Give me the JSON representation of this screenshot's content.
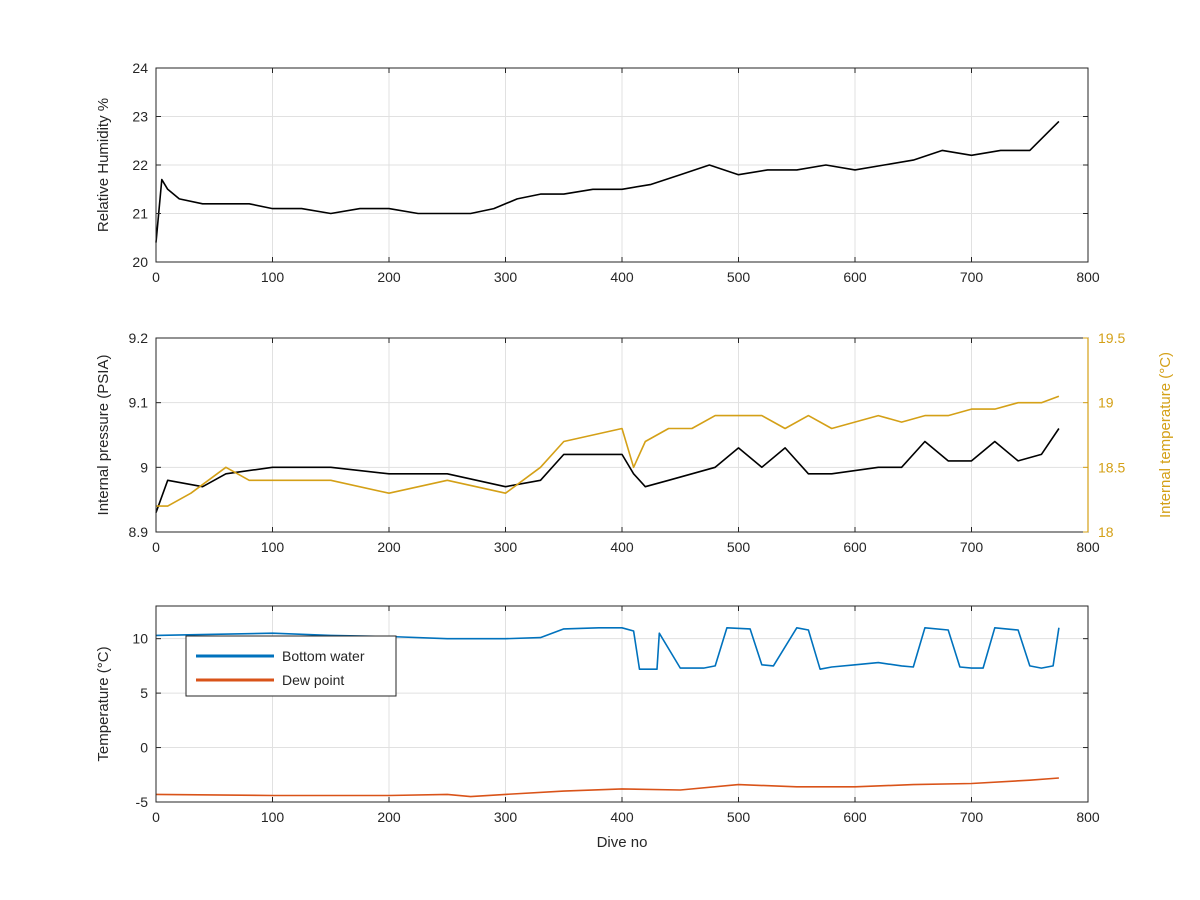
{
  "colors": {
    "humidity": "#000000",
    "pressure": "#000000",
    "internal_temp": "#D4A017",
    "bottom_water": "#0072BD",
    "dew_point": "#D95319",
    "grid": "#e1e1e1",
    "axis": "#262626"
  },
  "chart_data": [
    {
      "type": "line",
      "ylabel": "Relative Humidity %",
      "xlabel": "",
      "xlim": [
        0,
        800
      ],
      "ylim": [
        20,
        24
      ],
      "xticks": [
        "0",
        "100",
        "200",
        "300",
        "400",
        "500",
        "600",
        "700",
        "800"
      ],
      "yticks": [
        "20",
        "21",
        "22",
        "23",
        "24"
      ],
      "grid": true,
      "series": [
        {
          "color_key": "humidity",
          "x": [
            0,
            5,
            10,
            20,
            40,
            60,
            80,
            100,
            125,
            150,
            175,
            200,
            225,
            250,
            270,
            290,
            310,
            330,
            350,
            375,
            400,
            425,
            450,
            475,
            500,
            525,
            550,
            575,
            600,
            625,
            650,
            675,
            700,
            725,
            750,
            775
          ],
          "y": [
            20.4,
            21.7,
            21.5,
            21.3,
            21.2,
            21.2,
            21.2,
            21.1,
            21.1,
            21.0,
            21.1,
            21.1,
            21.0,
            21.0,
            21.0,
            21.1,
            21.3,
            21.4,
            21.4,
            21.5,
            21.5,
            21.6,
            21.8,
            22.0,
            21.8,
            21.9,
            21.9,
            22.0,
            21.9,
            22.0,
            22.1,
            22.3,
            22.2,
            22.3,
            22.3,
            22.9
          ]
        }
      ]
    },
    {
      "type": "line",
      "ylabel": "Internal pressure (PSIA)",
      "y2label": "Internal temperature (°C)",
      "xlim": [
        0,
        800
      ],
      "ylim": [
        8.9,
        9.2
      ],
      "y2lim": [
        18,
        19.5
      ],
      "xticks": [
        "0",
        "100",
        "200",
        "300",
        "400",
        "500",
        "600",
        "700",
        "800"
      ],
      "yticks": [
        "8.9",
        "9",
        "9.1",
        "9.2"
      ],
      "y2ticks": [
        "18",
        "18.5",
        "19",
        "19.5"
      ],
      "grid": true,
      "series": [
        {
          "axis": "left",
          "color_key": "pressure",
          "x": [
            0,
            10,
            40,
            60,
            100,
            150,
            200,
            250,
            300,
            330,
            350,
            400,
            410,
            420,
            440,
            460,
            480,
            500,
            520,
            540,
            560,
            580,
            620,
            640,
            660,
            680,
            700,
            720,
            740,
            760,
            775
          ],
          "y": [
            8.93,
            8.98,
            8.97,
            8.99,
            9.0,
            9.0,
            8.99,
            8.99,
            8.97,
            8.98,
            9.02,
            9.02,
            8.99,
            8.97,
            8.98,
            8.99,
            9.0,
            9.03,
            9.0,
            9.03,
            8.99,
            8.99,
            9.0,
            9.0,
            9.04,
            9.01,
            9.01,
            9.04,
            9.01,
            9.02,
            9.06
          ]
        },
        {
          "axis": "right",
          "color_key": "internal_temp",
          "x": [
            0,
            10,
            30,
            60,
            80,
            100,
            150,
            200,
            250,
            300,
            330,
            350,
            400,
            410,
            420,
            440,
            460,
            480,
            500,
            520,
            540,
            560,
            580,
            620,
            640,
            660,
            680,
            700,
            720,
            740,
            760,
            775
          ],
          "y": [
            18.2,
            18.2,
            18.3,
            18.5,
            18.4,
            18.4,
            18.4,
            18.3,
            18.4,
            18.3,
            18.5,
            18.7,
            18.8,
            18.5,
            18.7,
            18.8,
            18.8,
            18.9,
            18.9,
            18.9,
            18.8,
            18.9,
            18.8,
            18.9,
            18.85,
            18.9,
            18.9,
            18.95,
            18.95,
            19.0,
            19.0,
            19.05
          ]
        }
      ]
    },
    {
      "type": "line",
      "ylabel": "Temperature (°C)",
      "xlabel": "Dive no",
      "xlim": [
        0,
        800
      ],
      "ylim": [
        -5,
        13
      ],
      "xticks": [
        "0",
        "100",
        "200",
        "300",
        "400",
        "500",
        "600",
        "700",
        "800"
      ],
      "yticks": [
        "-5",
        "0",
        "5",
        "10"
      ],
      "grid": true,
      "legend": "top-left",
      "series": [
        {
          "name": "Bottom water",
          "color_key": "bottom_water",
          "x": [
            0,
            50,
            100,
            150,
            200,
            250,
            300,
            330,
            350,
            380,
            400,
            410,
            415,
            430,
            432,
            450,
            470,
            480,
            490,
            510,
            520,
            530,
            550,
            560,
            570,
            580,
            600,
            620,
            640,
            650,
            660,
            680,
            690,
            700,
            710,
            720,
            730,
            740,
            750,
            760,
            770,
            775
          ],
          "y": [
            10.3,
            10.4,
            10.5,
            10.3,
            10.2,
            10.0,
            10.0,
            10.1,
            10.9,
            11.0,
            11.0,
            10.7,
            7.2,
            7.2,
            10.5,
            7.3,
            7.3,
            7.5,
            11.0,
            10.9,
            7.6,
            7.5,
            11.0,
            10.8,
            7.2,
            7.4,
            7.6,
            7.8,
            7.5,
            7.4,
            11.0,
            10.8,
            7.4,
            7.3,
            7.3,
            11.0,
            10.9,
            10.8,
            7.5,
            7.3,
            7.5,
            11.0
          ]
        },
        {
          "name": "Dew point",
          "color_key": "dew_point",
          "x": [
            0,
            100,
            200,
            250,
            270,
            300,
            350,
            400,
            450,
            500,
            550,
            600,
            650,
            700,
            750,
            775
          ],
          "y": [
            -4.3,
            -4.4,
            -4.4,
            -4.3,
            -4.5,
            -4.3,
            -4.0,
            -3.8,
            -3.9,
            -3.4,
            -3.6,
            -3.6,
            -3.4,
            -3.3,
            -3.0,
            -2.8
          ]
        }
      ]
    }
  ]
}
